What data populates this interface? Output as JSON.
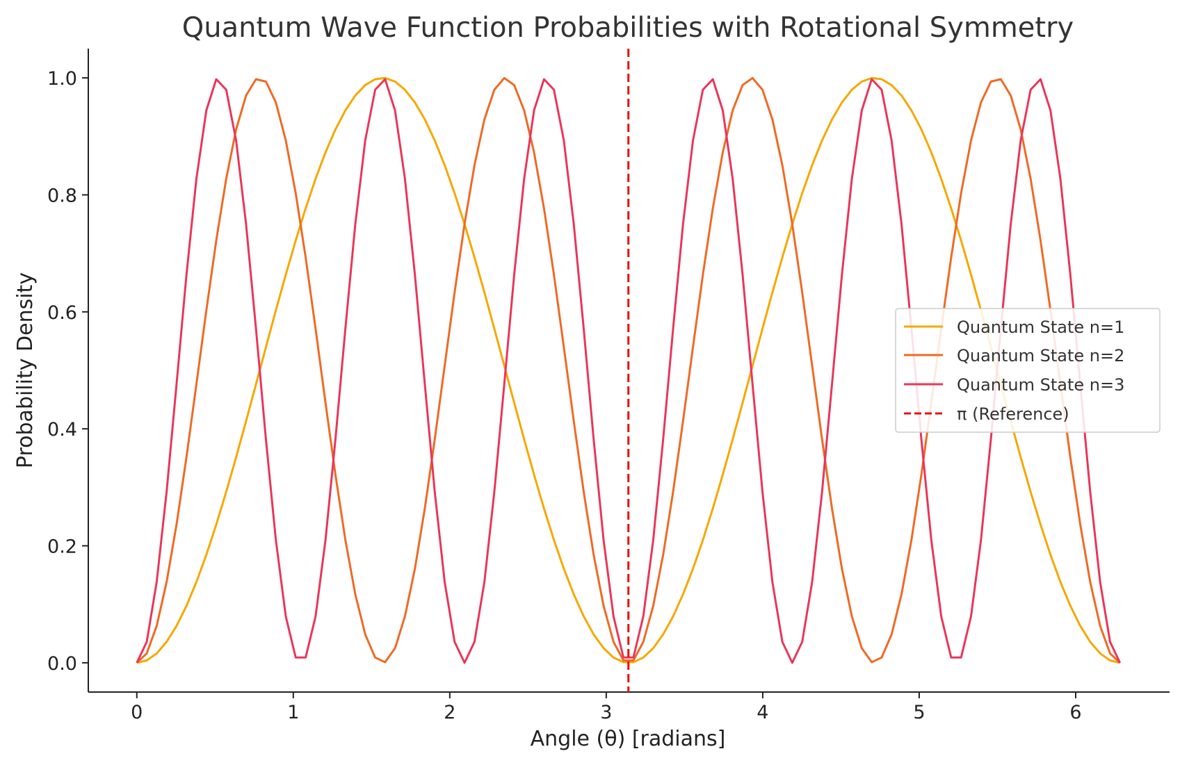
{
  "chart_data": {
    "type": "line",
    "title": "Quantum Wave Function Probabilities with Rotational Symmetry",
    "xlabel": "Angle (θ) [radians]",
    "ylabel": "Probability Density",
    "xlim": [
      -0.31,
      6.6
    ],
    "ylim": [
      -0.05,
      1.05
    ],
    "xticks": [
      0,
      1,
      2,
      3,
      4,
      5,
      6
    ],
    "xtick_labels": [
      "0",
      "1",
      "2",
      "3",
      "4",
      "5",
      "6"
    ],
    "yticks": [
      0.0,
      0.2,
      0.4,
      0.6,
      0.8,
      1.0
    ],
    "ytick_labels": [
      "0.0",
      "0.2",
      "0.4",
      "0.6",
      "0.8",
      "1.0"
    ],
    "grid": false,
    "legend_position": "center-right",
    "x_domain": [
      0,
      6.2832
    ],
    "samples": 100,
    "series": [
      {
        "name": "Quantum State n=1",
        "formula": "sin(1·θ)²",
        "n": 1,
        "color": "#F5A800",
        "style": "solid"
      },
      {
        "name": "Quantum State n=2",
        "formula": "sin(2·θ)²",
        "n": 2,
        "color": "#EE6A24",
        "style": "solid"
      },
      {
        "name": "Quantum State n=3",
        "formula": "sin(3·θ)²",
        "n": 3,
        "color": "#E8365A",
        "style": "solid"
      }
    ],
    "reference_line": {
      "name": "π (Reference)",
      "x": 3.14159,
      "color": "#E81010",
      "style": "dashed"
    }
  }
}
